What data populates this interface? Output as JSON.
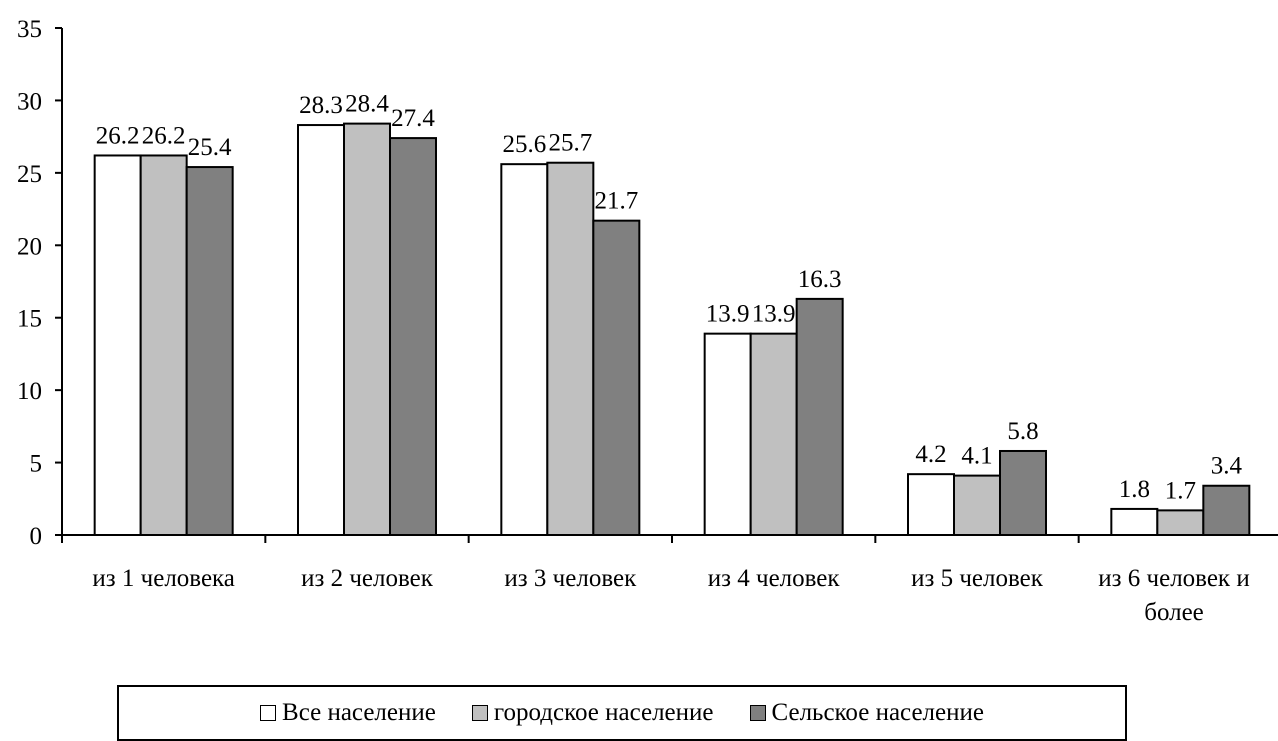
{
  "chart_data": {
    "type": "bar",
    "title": "",
    "xlabel": "",
    "ylabel": "",
    "ylim": [
      0,
      35
    ],
    "yticks": [
      0,
      5,
      10,
      15,
      20,
      25,
      30,
      35
    ],
    "grid": false,
    "legend_position": "bottom",
    "categories": [
      [
        "из 1 человека"
      ],
      [
        "из 2 человек"
      ],
      [
        "из 3 человек"
      ],
      [
        "из 4 человек"
      ],
      [
        "из 5 человек"
      ],
      [
        "из 6 человек и",
        "более"
      ]
    ],
    "series": [
      {
        "name": "Все население",
        "color": "#ffffff",
        "values": [
          26.2,
          28.3,
          25.6,
          13.9,
          4.2,
          1.8
        ]
      },
      {
        "name": "городское население",
        "color": "#c0c0c0",
        "values": [
          26.2,
          28.4,
          25.7,
          13.9,
          4.1,
          1.7
        ]
      },
      {
        "name": "Сельское население",
        "color": "#808080",
        "values": [
          25.4,
          27.4,
          21.7,
          16.3,
          5.8,
          3.4
        ]
      }
    ]
  }
}
